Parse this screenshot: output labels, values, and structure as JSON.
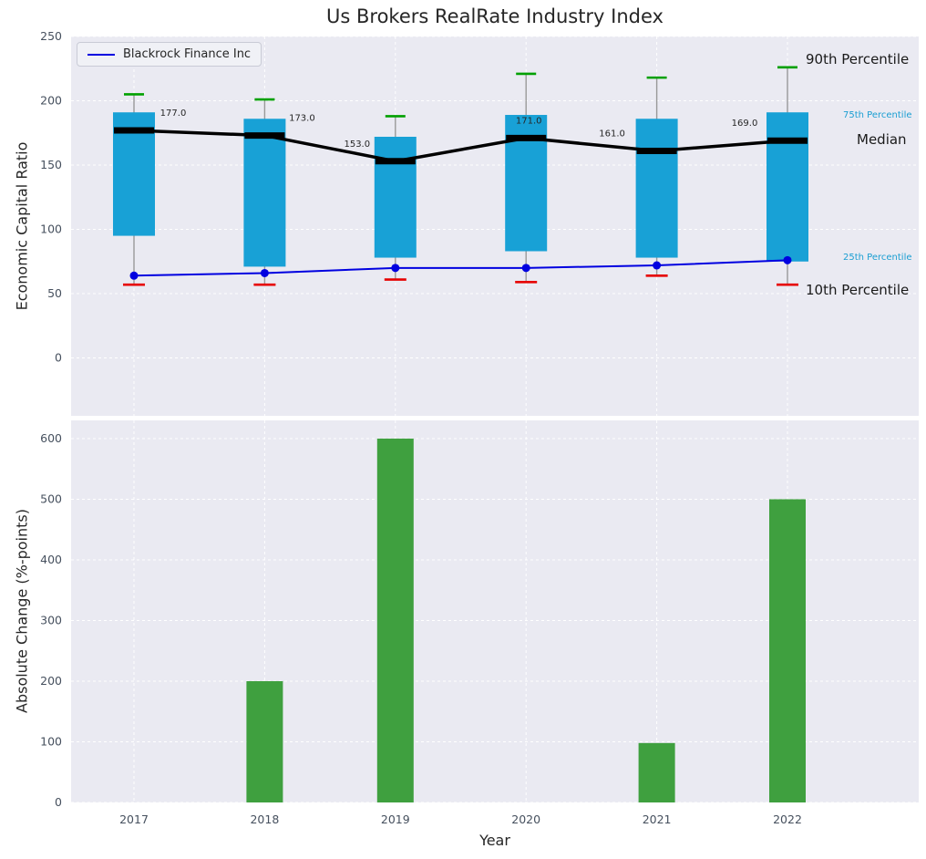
{
  "title": "Us Brokers RealRate Industry Index",
  "legend": {
    "label": "Blackrock Finance Inc",
    "position": "upper left"
  },
  "annotations": {
    "p90": "90th Percentile",
    "p75": "75th Percentile",
    "median": "Median",
    "p25": "25th Percentile",
    "p10": "10th Percentile"
  },
  "colors": {
    "plot_bg": "#eaeaf2",
    "grid": "#ffffff",
    "box": "#18a1d6",
    "green_cap": "#00a000",
    "red_cap": "#e60000",
    "median": "#000000",
    "company": "#0000e0",
    "bar": "#3fa03f",
    "whisker": "#999999",
    "tick": "#46505e",
    "text": "#262626",
    "annotation_cyan": "#1a9ed2"
  },
  "chart_data": [
    {
      "type": "boxplot+line",
      "ylabel": "Economic Capital Ratio",
      "ylim": [
        -45,
        250
      ],
      "yticks": [
        0,
        50,
        100,
        150,
        200,
        250
      ],
      "grid": true,
      "categories": [
        2017,
        2018,
        2019,
        2020,
        2021,
        2022
      ],
      "series": [
        {
          "name": "90th Percentile",
          "values": [
            205,
            201,
            188,
            221,
            218,
            226
          ]
        },
        {
          "name": "75th Percentile",
          "values": [
            191,
            186,
            172,
            189,
            186,
            191
          ]
        },
        {
          "name": "Median",
          "values": [
            177,
            173,
            153,
            171,
            161,
            169
          ]
        },
        {
          "name": "25th Percentile",
          "values": [
            95,
            71,
            78,
            83,
            78,
            75
          ]
        },
        {
          "name": "10th Percentile",
          "values": [
            57,
            57,
            61,
            59,
            64,
            57
          ]
        },
        {
          "name": "Blackrock Finance Inc",
          "values": [
            64,
            66,
            70,
            70,
            72,
            76
          ]
        }
      ],
      "median_labels": [
        "177.0",
        "173.0",
        "153.0",
        "171.0",
        "161.0",
        "169.0"
      ]
    },
    {
      "type": "bar",
      "ylabel": "Absolute Change (%-points)",
      "xlabel": "Year",
      "ylim": [
        0,
        630
      ],
      "yticks": [
        0,
        100,
        200,
        300,
        400,
        500,
        600
      ],
      "grid": true,
      "categories": [
        2017,
        2018,
        2019,
        2020,
        2021,
        2022
      ],
      "values": [
        0,
        200,
        600,
        0,
        98,
        500
      ]
    }
  ]
}
